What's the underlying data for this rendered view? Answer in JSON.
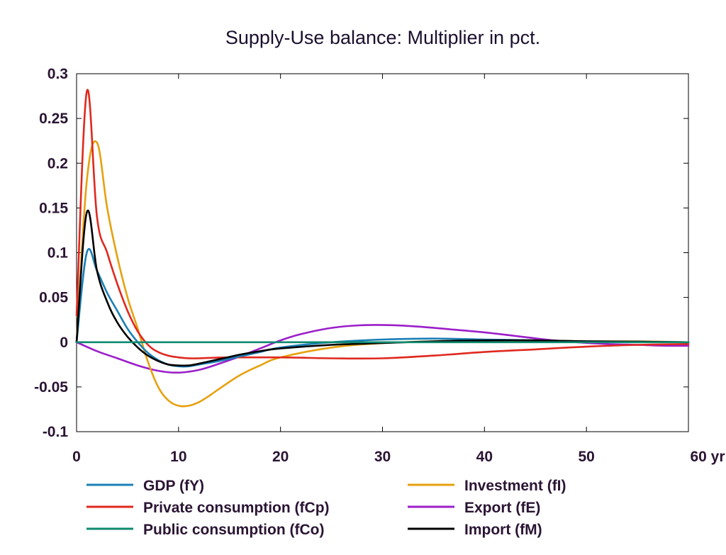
{
  "chart_data": {
    "type": "line",
    "title": "Supply-Use balance: Multiplier in pct.",
    "xlabel": "",
    "ylabel": "",
    "x_unit_label": "yr",
    "xlim": [
      0,
      60
    ],
    "ylim": [
      -0.1,
      0.3
    ],
    "x_ticks": [
      0,
      10,
      20,
      30,
      40,
      50,
      60
    ],
    "x_tick_labels": [
      "0",
      "10",
      "20",
      "30",
      "40",
      "50",
      "60 yr"
    ],
    "y_ticks": [
      -0.1,
      -0.05,
      0,
      0.05,
      0.1,
      0.15,
      0.2,
      0.25,
      0.3
    ],
    "y_tick_labels": [
      "-0.1",
      "-0.05",
      "0",
      "0.05",
      "0.1",
      "0.15",
      "0.2",
      "0.25",
      "0.3"
    ],
    "grid": false,
    "legend_position": "bottom",
    "series": [
      {
        "name": "GDP (fY)",
        "color": "#1a7fb5",
        "x": [
          0,
          1,
          2,
          3,
          4,
          5,
          6,
          7,
          8,
          9,
          10,
          11,
          12,
          14,
          16,
          18,
          20,
          25,
          30,
          35,
          40,
          45,
          50,
          55,
          60
        ],
        "y": [
          0,
          0.1,
          0.08,
          0.055,
          0.035,
          0.015,
          0,
          -0.012,
          -0.02,
          -0.025,
          -0.027,
          -0.027,
          -0.025,
          -0.021,
          -0.016,
          -0.011,
          -0.006,
          0.0,
          0.003,
          0.004,
          0.003,
          0.002,
          0.001,
          0.0005,
          0
        ]
      },
      {
        "name": "Private consumption (fCp)",
        "color": "#e0281e",
        "x": [
          0,
          1,
          2,
          3,
          4,
          5,
          6,
          7,
          8,
          9,
          10,
          11,
          12,
          15,
          20,
          25,
          30,
          35,
          40,
          45,
          50,
          55,
          60
        ],
        "y": [
          0.03,
          0.28,
          0.14,
          0.1,
          0.065,
          0.035,
          0.012,
          -0.003,
          -0.011,
          -0.015,
          -0.017,
          -0.018,
          -0.018,
          -0.017,
          -0.017,
          -0.018,
          -0.018,
          -0.015,
          -0.011,
          -0.008,
          -0.005,
          -0.003,
          -0.002
        ]
      },
      {
        "name": "Public consumption (fCo)",
        "color": "#0f8a6f",
        "x": [
          0,
          60
        ],
        "y": [
          0,
          0
        ]
      },
      {
        "name": "Investment (fI)",
        "color": "#e6a10e",
        "x": [
          0,
          1,
          2,
          3,
          4,
          5,
          6,
          7,
          8,
          9,
          10,
          11,
          12,
          13,
          14,
          16,
          18,
          20,
          25,
          30,
          35,
          40,
          45,
          50,
          55,
          60
        ],
        "y": [
          0,
          0.18,
          0.223,
          0.15,
          0.095,
          0.05,
          0.015,
          -0.022,
          -0.05,
          -0.065,
          -0.071,
          -0.071,
          -0.067,
          -0.06,
          -0.052,
          -0.037,
          -0.026,
          -0.017,
          -0.006,
          -0.001,
          0.001,
          0.002,
          0.002,
          0.001,
          0.001,
          0
        ]
      },
      {
        "name": "Export (fE)",
        "color": "#9b1ec9",
        "x": [
          0,
          2,
          4,
          6,
          8,
          10,
          12,
          14,
          16,
          18,
          20,
          22,
          25,
          28,
          31,
          34,
          37,
          40,
          43,
          46,
          49,
          52,
          55,
          58,
          60
        ],
        "y": [
          0,
          -0.01,
          -0.018,
          -0.026,
          -0.032,
          -0.034,
          -0.031,
          -0.024,
          -0.016,
          -0.007,
          0.002,
          0.009,
          0.016,
          0.019,
          0.019,
          0.017,
          0.014,
          0.011,
          0.007,
          0.003,
          0.0,
          -0.002,
          -0.003,
          -0.004,
          -0.004
        ]
      },
      {
        "name": "Import (fM)",
        "color": "#000000",
        "x": [
          0,
          1,
          2,
          3,
          4,
          5,
          6,
          7,
          8,
          9,
          10,
          11,
          12,
          14,
          16,
          18,
          20,
          25,
          30,
          35,
          40,
          45,
          50,
          55,
          60
        ],
        "y": [
          0,
          0.145,
          0.08,
          0.045,
          0.022,
          0.006,
          -0.006,
          -0.015,
          -0.021,
          -0.025,
          -0.026,
          -0.026,
          -0.024,
          -0.019,
          -0.014,
          -0.01,
          -0.007,
          -0.003,
          -0.001,
          0.001,
          0.002,
          0.002,
          0.001,
          0.0005,
          0
        ]
      }
    ]
  }
}
